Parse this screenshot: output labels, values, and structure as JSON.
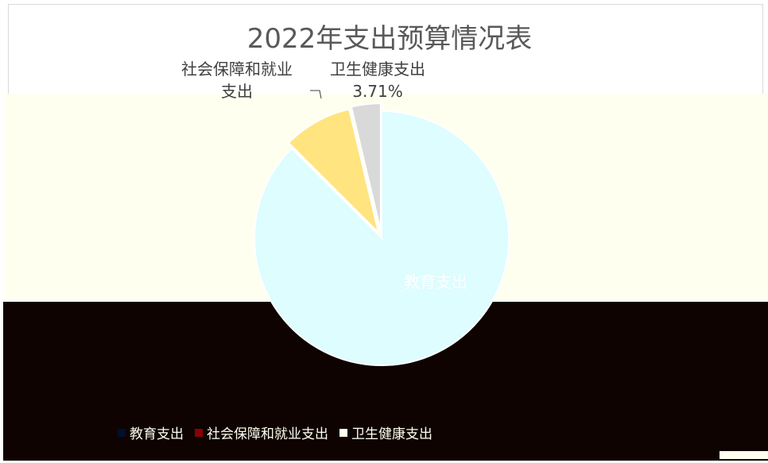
{
  "chart_data": {
    "type": "pie",
    "title": "2022年支出预算情况表",
    "slices": [
      {
        "label": "教育支出",
        "value": 87.5,
        "color": "#ddfdff"
      },
      {
        "label": "社会保障和就业支出",
        "value": 8.79,
        "color": "#ffe47f"
      },
      {
        "label": "卫生健康支出",
        "value": 3.71,
        "color": "#d9d9d9"
      }
    ],
    "data_labels": [
      {
        "name": "社会保障和就业支出",
        "lines": [
          "社会保障和就业",
          "支出"
        ]
      },
      {
        "name": "卫生健康支出",
        "lines": [
          "卫生健康支出",
          "3.71%"
        ]
      },
      {
        "name": "教育支出",
        "lines": [
          "教育支出"
        ]
      }
    ],
    "legend": {
      "position": "bottom",
      "entries": [
        {
          "label": "教育支出",
          "color": "#00102a"
        },
        {
          "label": "社会保障和就业支出",
          "color": "#8b0000"
        },
        {
          "label": "卫生健康支出",
          "color": "#fffff0"
        }
      ]
    }
  }
}
